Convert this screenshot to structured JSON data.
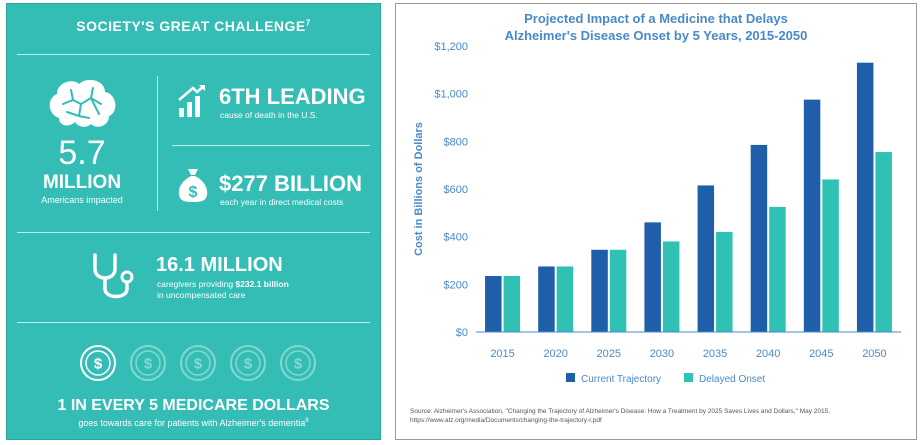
{
  "infographic": {
    "title": "SOCIETY'S GREAT CHALLENGE",
    "title_ref": "7",
    "americans_number": "5.7",
    "americans_unit": "MILLION",
    "americans_label": "Americans impacted",
    "rank_head": "6TH LEADING",
    "rank_sub": "cause of death in the U.S.",
    "cost_head": "$277 BILLION",
    "cost_sub": "each year in direct medical costs",
    "caregivers_head": "16.1 MILLION",
    "caregivers_sub_prefix": "caregivers providing ",
    "caregivers_sub_bold": "$232.1 billion",
    "caregivers_sub_line2": "in uncompensated care",
    "medicare_head": "1 IN EVERY 5 MEDICARE DOLLARS",
    "medicare_sub": "goes towards care for patients with Alzheimer's dementia",
    "medicare_ref": "8",
    "colors": {
      "background": "#34bdb5",
      "text": "#ffffff"
    },
    "icons": [
      "brain-icon",
      "bar-growth-icon",
      "money-bag-icon",
      "stethoscope-icon",
      "dollar-coin-icon"
    ]
  },
  "chart_data": {
    "type": "bar",
    "title_line1": "Projected Impact of a Medicine that Delays",
    "title_line2": "Alzheimer's Disease Onset by 5 Years, 2015-2050",
    "ylabel": "Cost in Billions of Dollars",
    "categories": [
      "2015",
      "2020",
      "2025",
      "2030",
      "2035",
      "2040",
      "2045",
      "2050"
    ],
    "yticks": [
      "$0",
      "$200",
      "$400",
      "$600",
      "$800",
      "$1,000",
      "$1,200"
    ],
    "ylim": [
      0,
      1200
    ],
    "series": [
      {
        "name": "Current Trajectory",
        "color": "#1f5ea8",
        "values": [
          235,
          275,
          345,
          460,
          615,
          785,
          975,
          1130
        ]
      },
      {
        "name": "Delayed Onset",
        "color": "#2ec1b4",
        "values": [
          235,
          275,
          345,
          380,
          420,
          525,
          640,
          755
        ]
      }
    ],
    "legend_position": "bottom",
    "grid": false,
    "source_line1": "Source: Alzheimer's Association, \"Changing the Trajectory of Alzheimer's Disease: How a Treatment by 2025 Saves Lives and Dollars,\" May 2015,",
    "source_line2": "https://www.alz.org/media/Documents/changing-the-trajectory-r.pdf"
  }
}
